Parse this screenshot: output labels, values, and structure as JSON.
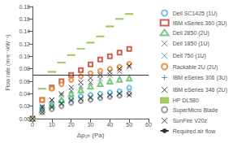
{
  "chart_data": {
    "type": "scatter",
    "xlabel": "Δp₀ₕ (Pa)",
    "ylabel": "Flow rate (m³s⁻¹kW⁻¹)",
    "xlim": [
      0,
      60
    ],
    "ylim": [
      0,
      0.18
    ],
    "xticks": [
      0,
      10,
      20,
      30,
      40,
      50,
      60
    ],
    "yticks": [
      {
        "value": 0,
        "label": "0.00"
      },
      0.02,
      0.04,
      0.06,
      0.08,
      {
        "value": 0.1,
        "label": "0.10"
      },
      0.12,
      0.14,
      0.16,
      0.18
    ],
    "grid": false,
    "x": [
      0,
      5,
      10,
      15,
      20,
      25,
      30,
      35,
      40,
      45,
      50
    ],
    "series": [
      {
        "name": "Dell SC1425 (1U)",
        "color": "#5ab4d6",
        "marker": "circle",
        "values": [
          0.0,
          0.018,
          0.024,
          0.028,
          0.032,
          0.036,
          0.038,
          0.04,
          0.042,
          0.044,
          0.05
        ]
      },
      {
        "name": "IBM xSeries 360 (3U)",
        "color": "#c0392b",
        "marker": "square",
        "values": [
          0.0,
          0.03,
          0.05,
          0.06,
          0.07,
          0.078,
          0.087,
          0.095,
          0.1,
          0.106,
          0.112
        ]
      },
      {
        "name": "Dell 2850 (2U)",
        "color": "#5cb85c",
        "marker": "triangle",
        "values": [
          0.0,
          0.014,
          0.022,
          0.03,
          0.04,
          0.046,
          0.052,
          0.056,
          0.06,
          0.063,
          0.065
        ]
      },
      {
        "name": "Dell 1850 (1U)",
        "color": "#555555",
        "marker": "x",
        "values": [
          0.0,
          0.02,
          0.03,
          0.038,
          0.045,
          0.052,
          0.058,
          0.064,
          0.07,
          0.076,
          0.083
        ]
      },
      {
        "name": "Dell 750 (1U)",
        "color": "#17a589",
        "marker": "x",
        "values": [
          0.0,
          0.014,
          0.02,
          0.025,
          0.028,
          0.03,
          0.034,
          0.036,
          0.038,
          0.04,
          0.043
        ]
      },
      {
        "name": "Rackable 2U (2U)",
        "color": "#e67e22",
        "marker": "circle",
        "values": [
          0.0,
          0.03,
          0.048,
          0.055,
          0.062,
          0.068,
          0.073,
          0.077,
          0.08,
          0.083,
          0.088
        ]
      },
      {
        "name": "IBM eSeries 306 (3U)",
        "color": "#2980b9",
        "marker": "plus",
        "values": [
          0.0,
          0.014,
          0.018,
          0.022,
          0.025,
          0.028,
          0.03,
          0.033,
          0.035,
          0.038,
          0.04
        ]
      },
      {
        "name": "IBM eSeries 346 (2U)",
        "color": "#1a1a1a",
        "marker": "x",
        "values": [
          0.0,
          0.018,
          0.03,
          0.04,
          0.05,
          0.058,
          0.065,
          0.07,
          0.075,
          0.08,
          0.085
        ]
      },
      {
        "name": "HP DL580",
        "color": "#8fbe3f",
        "marker": "hline",
        "values": [
          0.0,
          0.048,
          0.075,
          0.09,
          0.102,
          0.112,
          0.122,
          0.132,
          0.148,
          0.16,
          0.168
        ]
      },
      {
        "name": "SuperMicro Blade",
        "color": "#888888",
        "marker": "circle",
        "values": [
          0.0,
          0.01,
          0.015,
          0.02,
          0.025,
          0.028,
          0.03,
          0.033,
          0.035,
          0.037,
          0.04
        ]
      },
      {
        "name": "SunFire V20z",
        "color": "#1a1a1a",
        "marker": "x",
        "values": [
          0.0,
          0.01,
          0.018,
          0.024,
          0.03,
          0.032,
          0.034,
          0.036,
          0.038,
          0.04,
          0.038
        ]
      }
    ],
    "hlines": [
      {
        "name": "Required air flow",
        "value": 0.067,
        "color": "#333333",
        "line_style": "solid"
      }
    ]
  }
}
